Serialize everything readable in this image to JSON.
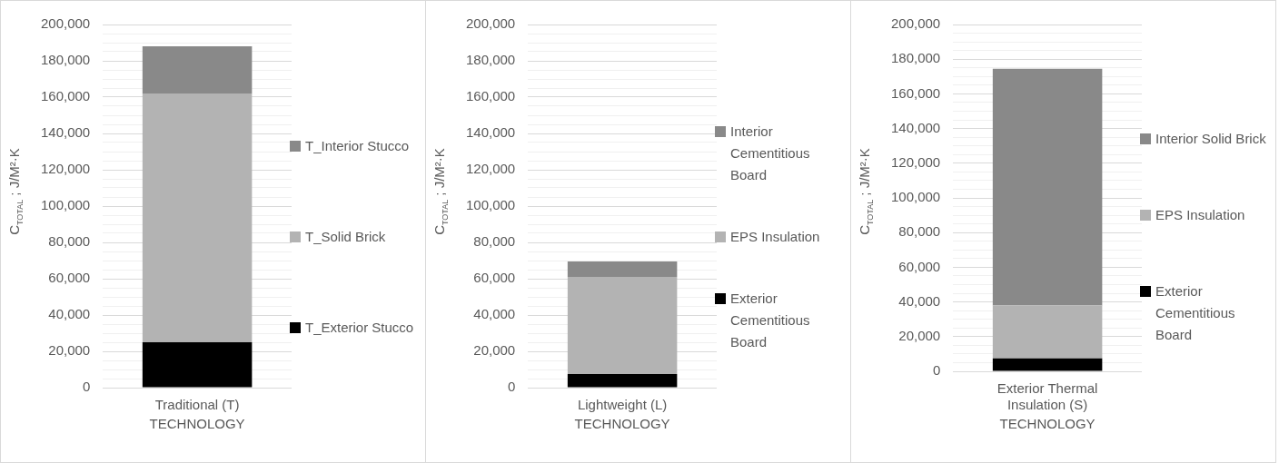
{
  "chart_data": [
    {
      "type": "bar",
      "stacked": true,
      "xlabel": "TECHNOLOGY",
      "ylabel": "C$_{TOTAL}$ ; J/M²·K",
      "categories": [
        "Traditional (T)"
      ],
      "legend": "right",
      "grid": true,
      "ylim": [
        0,
        200000
      ],
      "yticks": [
        {
          "value": 0,
          "label": "0"
        },
        {
          "value": 5000,
          "label": null
        },
        {
          "value": 10000,
          "label": null
        },
        {
          "value": 15000,
          "label": null
        },
        {
          "value": 20000,
          "label": "20,000"
        },
        {
          "value": 25000,
          "label": null
        },
        {
          "value": 30000,
          "label": null
        },
        {
          "value": 35000,
          "label": null
        },
        {
          "value": 40000,
          "label": "40,000"
        },
        {
          "value": 45000,
          "label": null
        },
        {
          "value": 50000,
          "label": null
        },
        {
          "value": 55000,
          "label": null
        },
        {
          "value": 60000,
          "label": "60,000"
        },
        {
          "value": 65000,
          "label": null
        },
        {
          "value": 70000,
          "label": null
        },
        {
          "value": 75000,
          "label": null
        },
        {
          "value": 80000,
          "label": "80,000"
        },
        {
          "value": 85000,
          "label": null
        },
        {
          "value": 90000,
          "label": null
        },
        {
          "value": 95000,
          "label": null
        },
        {
          "value": 100000,
          "label": "100,000"
        },
        {
          "value": 105000,
          "label": null
        },
        {
          "value": 110000,
          "label": null
        },
        {
          "value": 115000,
          "label": null
        },
        {
          "value": 120000,
          "label": "120,000"
        },
        {
          "value": 125000,
          "label": null
        },
        {
          "value": 130000,
          "label": null
        },
        {
          "value": 135000,
          "label": null
        },
        {
          "value": 140000,
          "label": "140,000"
        },
        {
          "value": 145000,
          "label": null
        },
        {
          "value": 150000,
          "label": null
        },
        {
          "value": 155000,
          "label": null
        },
        {
          "value": 160000,
          "label": "160,000"
        },
        {
          "value": 165000,
          "label": null
        },
        {
          "value": 170000,
          "label": null
        },
        {
          "value": 175000,
          "label": null
        },
        {
          "value": 180000,
          "label": "180,000"
        },
        {
          "value": 185000,
          "label": null
        },
        {
          "value": 190000,
          "label": null
        },
        {
          "value": 195000,
          "label": null
        },
        {
          "value": 200000,
          "label": "200,000"
        }
      ],
      "series": [
        {
          "name": "T_Exterior Stucco",
          "color": "#000000",
          "values": [
            25000
          ]
        },
        {
          "name": "T_Solid Brick",
          "color": "#b3b3b3",
          "values": [
            137000
          ]
        },
        {
          "name": "T_Interior Stucco",
          "color": "#898989",
          "values": [
            26000
          ]
        }
      ]
    },
    {
      "type": "bar",
      "stacked": true,
      "xlabel": "TECHNOLOGY",
      "ylabel": "C$_{TOTAL}$ ; J/M²·K",
      "categories": [
        "Lightweight (L)"
      ],
      "legend": "right",
      "grid": true,
      "ylim": [
        0,
        200000
      ],
      "yticks": [
        {
          "value": 0,
          "label": "0"
        },
        {
          "value": 5000,
          "label": null
        },
        {
          "value": 10000,
          "label": null
        },
        {
          "value": 15000,
          "label": null
        },
        {
          "value": 20000,
          "label": "20,000"
        },
        {
          "value": 25000,
          "label": null
        },
        {
          "value": 30000,
          "label": null
        },
        {
          "value": 35000,
          "label": null
        },
        {
          "value": 40000,
          "label": "40,000"
        },
        {
          "value": 45000,
          "label": null
        },
        {
          "value": 50000,
          "label": null
        },
        {
          "value": 55000,
          "label": null
        },
        {
          "value": 60000,
          "label": "60,000"
        },
        {
          "value": 65000,
          "label": null
        },
        {
          "value": 70000,
          "label": null
        },
        {
          "value": 75000,
          "label": null
        },
        {
          "value": 80000,
          "label": "80,000"
        },
        {
          "value": 85000,
          "label": null
        },
        {
          "value": 90000,
          "label": null
        },
        {
          "value": 95000,
          "label": null
        },
        {
          "value": 100000,
          "label": "100,000"
        },
        {
          "value": 105000,
          "label": null
        },
        {
          "value": 110000,
          "label": null
        },
        {
          "value": 115000,
          "label": null
        },
        {
          "value": 120000,
          "label": "120,000"
        },
        {
          "value": 125000,
          "label": null
        },
        {
          "value": 130000,
          "label": null
        },
        {
          "value": 135000,
          "label": null
        },
        {
          "value": 140000,
          "label": "140,000"
        },
        {
          "value": 145000,
          "label": null
        },
        {
          "value": 150000,
          "label": null
        },
        {
          "value": 155000,
          "label": null
        },
        {
          "value": 160000,
          "label": "160,000"
        },
        {
          "value": 165000,
          "label": null
        },
        {
          "value": 170000,
          "label": null
        },
        {
          "value": 175000,
          "label": null
        },
        {
          "value": 180000,
          "label": "180,000"
        },
        {
          "value": 185000,
          "label": null
        },
        {
          "value": 190000,
          "label": null
        },
        {
          "value": 195000,
          "label": null
        },
        {
          "value": 200000,
          "label": "200,000"
        }
      ],
      "series": [
        {
          "name": "Exterior Cementitious Board",
          "color": "#000000",
          "values": [
            7500
          ]
        },
        {
          "name": "EPS Insulation",
          "color": "#b3b3b3",
          "values": [
            53500
          ]
        },
        {
          "name": "Interior Cementitious Board",
          "color": "#898989",
          "values": [
            8500
          ]
        }
      ]
    },
    {
      "type": "bar",
      "stacked": true,
      "xlabel": "TECHNOLOGY",
      "ylabel": "C$_{TOTAL}$ ; J/M²·K",
      "categories": [
        "Exterior Thermal Insulation (S)"
      ],
      "legend": "right",
      "grid": true,
      "ylim": [
        0,
        200000
      ],
      "yticks": [
        {
          "value": 0,
          "label": "0"
        },
        {
          "value": 5000,
          "label": null
        },
        {
          "value": 10000,
          "label": null
        },
        {
          "value": 15000,
          "label": null
        },
        {
          "value": 20000,
          "label": "20,000"
        },
        {
          "value": 25000,
          "label": null
        },
        {
          "value": 30000,
          "label": null
        },
        {
          "value": 35000,
          "label": null
        },
        {
          "value": 40000,
          "label": "40,000"
        },
        {
          "value": 45000,
          "label": null
        },
        {
          "value": 50000,
          "label": null
        },
        {
          "value": 55000,
          "label": null
        },
        {
          "value": 60000,
          "label": "60,000"
        },
        {
          "value": 65000,
          "label": null
        },
        {
          "value": 70000,
          "label": null
        },
        {
          "value": 75000,
          "label": null
        },
        {
          "value": 80000,
          "label": "80,000"
        },
        {
          "value": 85000,
          "label": null
        },
        {
          "value": 90000,
          "label": null
        },
        {
          "value": 95000,
          "label": null
        },
        {
          "value": 100000,
          "label": "100,000"
        },
        {
          "value": 105000,
          "label": null
        },
        {
          "value": 110000,
          "label": null
        },
        {
          "value": 115000,
          "label": null
        },
        {
          "value": 120000,
          "label": "120,000"
        },
        {
          "value": 125000,
          "label": null
        },
        {
          "value": 130000,
          "label": null
        },
        {
          "value": 135000,
          "label": null
        },
        {
          "value": 140000,
          "label": "140,000"
        },
        {
          "value": 145000,
          "label": null
        },
        {
          "value": 150000,
          "label": null
        },
        {
          "value": 155000,
          "label": null
        },
        {
          "value": 160000,
          "label": "160,000"
        },
        {
          "value": 165000,
          "label": null
        },
        {
          "value": 170000,
          "label": null
        },
        {
          "value": 175000,
          "label": null
        },
        {
          "value": 180000,
          "label": "180,000"
        },
        {
          "value": 185000,
          "label": null
        },
        {
          "value": 190000,
          "label": null
        },
        {
          "value": 195000,
          "label": null
        },
        {
          "value": 200000,
          "label": "200,000"
        }
      ],
      "series": [
        {
          "name": "Exterior Cementitious Board",
          "color": "#000000",
          "values": [
            7500
          ]
        },
        {
          "name": "EPS Insulation",
          "color": "#b3b3b3",
          "values": [
            30500
          ]
        },
        {
          "name": "Interior Solid Brick",
          "color": "#898989",
          "values": [
            136500
          ]
        }
      ]
    }
  ]
}
